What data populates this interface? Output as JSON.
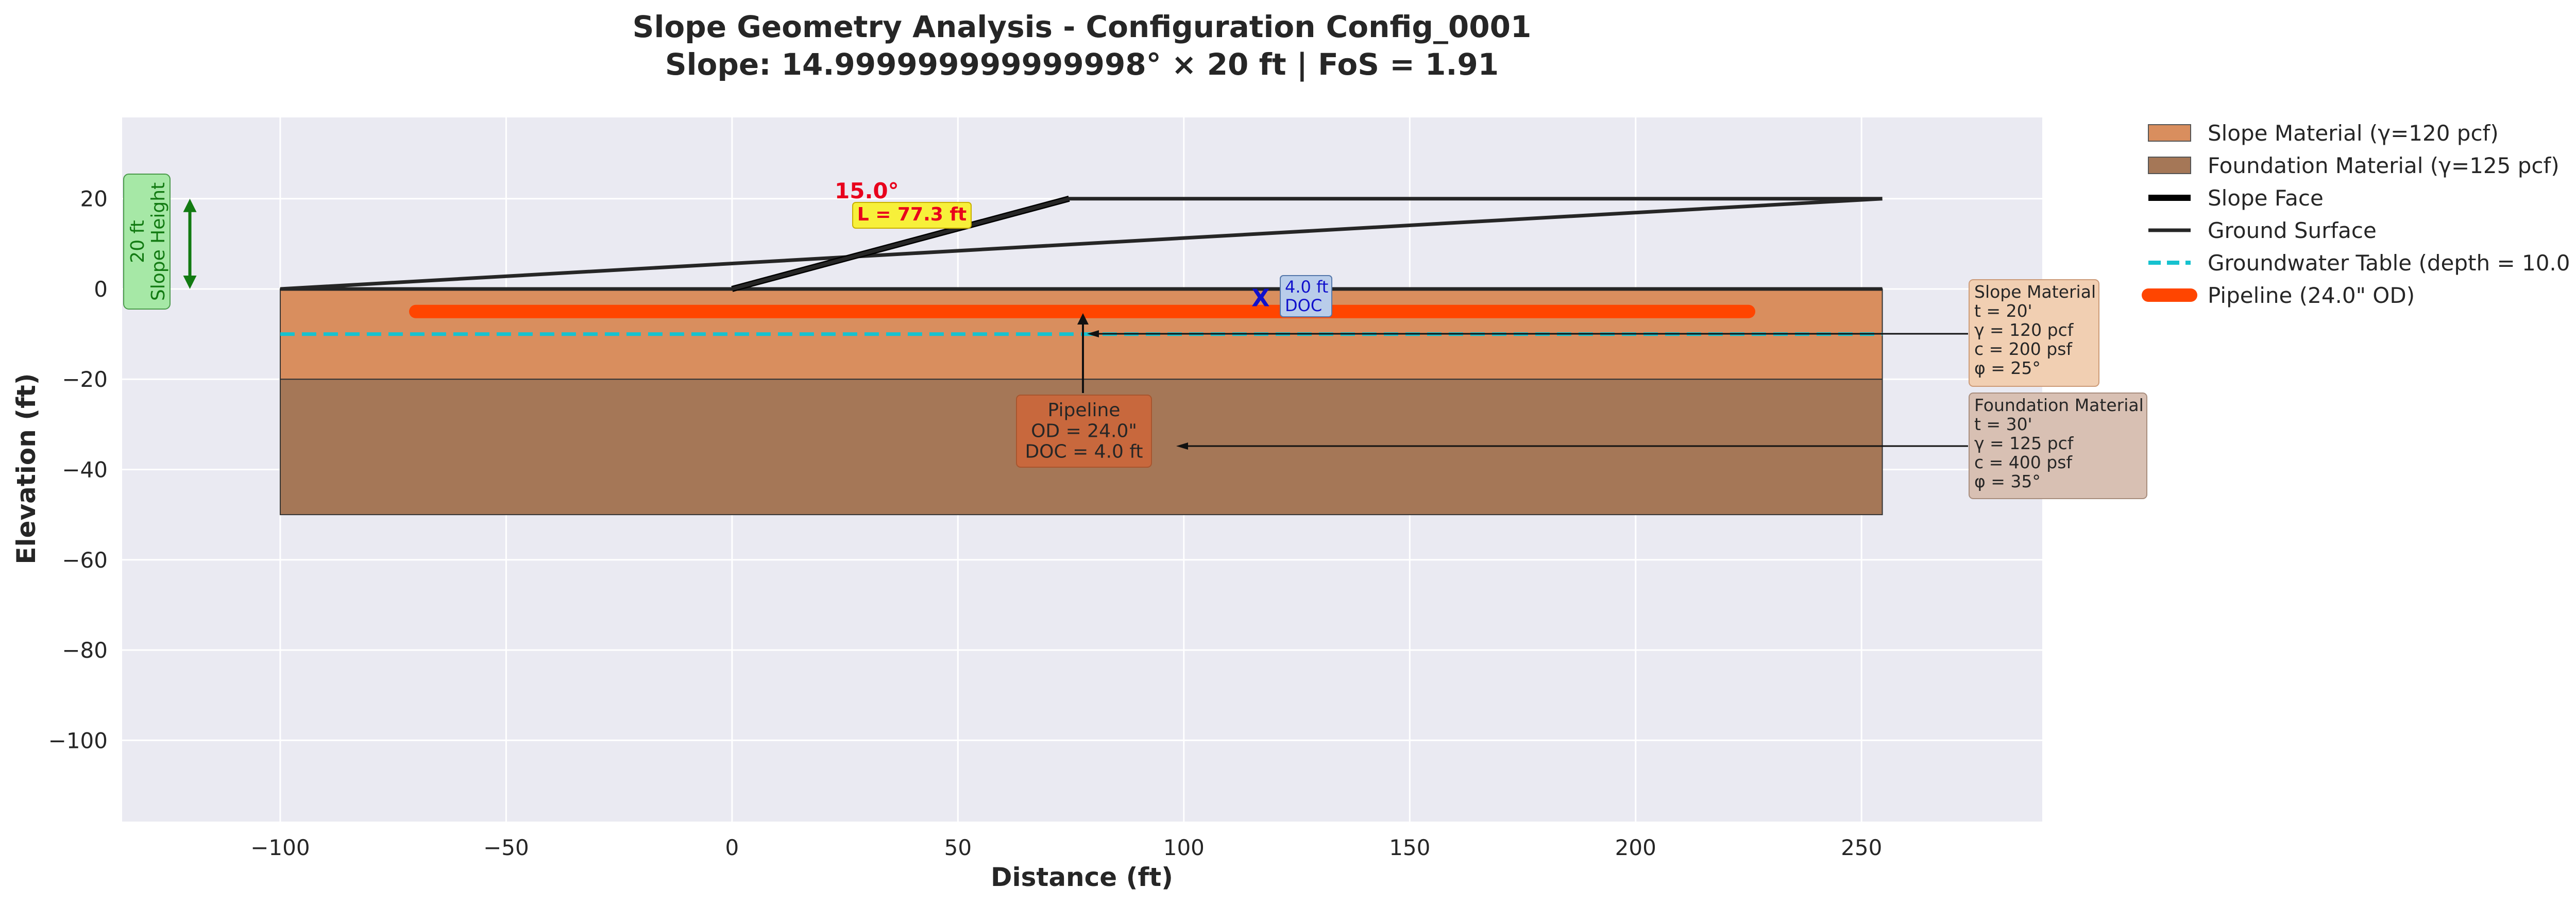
{
  "chart_data": {
    "type": "line",
    "title": "Slope Geometry Analysis - Configuration Config_0001",
    "subtitle": "Slope: 14.999999999999998° × 20 ft | FoS = 1.91",
    "xlabel": "Distance (ft)",
    "ylabel": "Elevation (ft)",
    "xlim": [
      -135,
      290
    ],
    "ylim": [
      -118,
      38
    ],
    "xticks": [
      -100,
      -50,
      0,
      50,
      100,
      150,
      200,
      250
    ],
    "yticks": [
      -100,
      -80,
      -60,
      -40,
      -20,
      0,
      20
    ],
    "xtick_labels": [
      "−100",
      "−50",
      "0",
      "50",
      "100",
      "150",
      "200",
      "250"
    ],
    "ytick_labels": [
      "−100",
      "−80",
      "−60",
      "−40",
      "−20",
      "0",
      "20"
    ],
    "grid": true,
    "legend_position": "outside-right-top",
    "layers": [
      {
        "name": "Slope Material (γ=120 pcf)",
        "x_from": -100,
        "x_to": 254.6,
        "y_top": 0,
        "y_bottom": -20,
        "color": "#d98e5e"
      },
      {
        "name": "Foundation Material (γ=125 pcf)",
        "x_from": -100,
        "x_to": 254.6,
        "y_top": -20,
        "y_bottom": -50,
        "color": "#a57757"
      }
    ],
    "series": [
      {
        "name": "Slope Face",
        "x": [
          0,
          74.6
        ],
        "y": [
          0,
          20
        ],
        "color": "#000000",
        "style": "solid-thick"
      },
      {
        "name": "Ground Surface",
        "x": [
          -100,
          0,
          74.6,
          254.6
        ],
        "y": [
          0,
          0,
          20,
          20
        ],
        "color": "#262626",
        "style": "solid"
      },
      {
        "name": "Groundwater Table (depth = 10.0 ft)",
        "x": [
          -100,
          254.6
        ],
        "y": [
          -10,
          -10
        ],
        "color": "#16c2cf",
        "style": "dashed"
      },
      {
        "name": "Pipeline (24.0\" OD)",
        "x": [
          -70,
          225
        ],
        "y": [
          -5,
          -5
        ],
        "color": "#ff4500",
        "style": "solid-heavy"
      }
    ],
    "extra_lines": [
      {
        "x": [
          -100,
          254.6
        ],
        "y": [
          0,
          20
        ]
      },
      {
        "x": [
          -100,
          254.6
        ],
        "y": [
          0,
          0
        ]
      }
    ],
    "doc_marker": {
      "x": 117,
      "y": -2,
      "symbol": "X",
      "color": "#1010cc"
    },
    "annotations": {
      "angle": "15.0°",
      "length": "L = 77.3 ft",
      "height": "20 ft\nSlope Height",
      "doc": "4.0 ft\nDOC",
      "pipe": "Pipeline\nOD = 24.0\"\nDOC = 4.0 ft",
      "slope_props": "Slope Material\nt = 20'\nγ = 120 pcf\nc = 200 psf\nφ = 25°",
      "found_props": "Foundation Material\nt = 30'\nγ = 125 pcf\nc = 400 psf\nφ = 35°"
    },
    "height_arrow": {
      "x": -120,
      "y_from": 0,
      "y_to": 20
    }
  }
}
